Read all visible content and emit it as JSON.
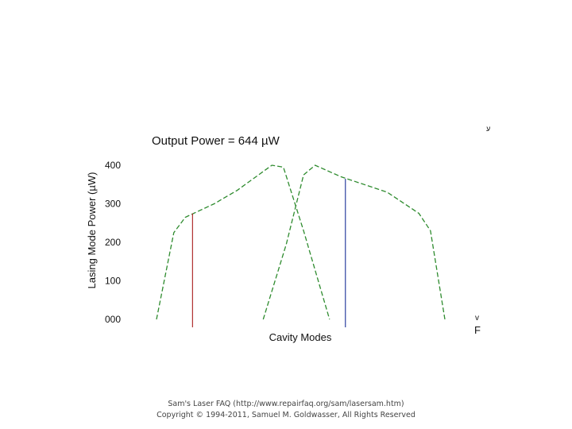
{
  "chart_data": {
    "type": "line",
    "title": "Output Power = 644 µW",
    "xlabel": "Cavity Modes",
    "ylabel": "Lasing Mode Power (µW)",
    "yticks": [
      "000",
      "100",
      "200",
      "300",
      "400"
    ],
    "ylim": [
      0,
      410
    ],
    "xlim": [
      0,
      100
    ],
    "grid": false,
    "legend": "none",
    "series": [
      {
        "style": "dashed",
        "color": "#2e8b2e",
        "points": [
          [
            0,
            0
          ],
          [
            6,
            225
          ],
          [
            10,
            265
          ],
          [
            20,
            300
          ],
          [
            28,
            335
          ],
          [
            40,
            400
          ],
          [
            44,
            395
          ],
          [
            51,
            230
          ],
          [
            60,
            0
          ]
        ]
      },
      {
        "style": "dashed",
        "color": "#2e8b2e",
        "points": [
          [
            37,
            0
          ],
          [
            45,
            195
          ],
          [
            51,
            375
          ],
          [
            55,
            400
          ],
          [
            64,
            370
          ],
          [
            80,
            330
          ],
          [
            91,
            275
          ],
          [
            95,
            230
          ],
          [
            100,
            0
          ]
        ]
      }
    ],
    "markers": [
      {
        "x": 12.5,
        "y": 275,
        "color": "#b03030"
      },
      {
        "x": 65.5,
        "y": 365,
        "color": "#2a3f9f"
      }
    ],
    "corner_marks": [
      "ע",
      "v",
      "F"
    ]
  },
  "footer": {
    "line1": "Sam's Laser FAQ (http://www.repairfaq.org/sam/lasersam.htm)",
    "line2": "Copyright © 1994-2011, Samuel M. Goldwasser, All Rights Reserved"
  }
}
